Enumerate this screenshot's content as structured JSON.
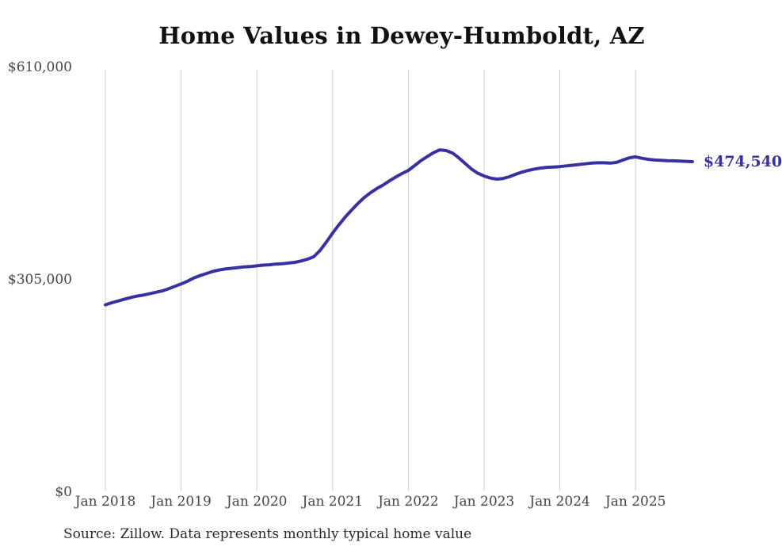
{
  "chart": {
    "source_note": "Source: Zillow. Data represents monthly typical home value"
  },
  "chart_data": {
    "type": "line",
    "title": "Home Values in Dewey-Humboldt, AZ",
    "frequency": "monthly",
    "x_start": "2018-01",
    "x_end": "2025-10",
    "x_tick_labels": [
      "Jan 2018",
      "Jan 2019",
      "Jan 2020",
      "Jan 2021",
      "Jan 2022",
      "Jan 2023",
      "Jan 2024",
      "Jan 2025"
    ],
    "y_ticks": [
      {
        "label": "$610,000",
        "value": 610000
      },
      {
        "label": "$305,000",
        "value": 305000
      },
      {
        "label": "$0",
        "value": 0
      }
    ],
    "ylim": [
      0,
      610000
    ],
    "grid": "vertical-only",
    "legend": "none",
    "end_label": "$474,540",
    "end_value": 474540,
    "series": [
      {
        "name": "Typical home value",
        "values": [
          269000,
          272000,
          274500,
          277000,
          279500,
          281500,
          283000,
          285000,
          287000,
          289000,
          292000,
          295500,
          299000,
          303000,
          307500,
          311000,
          314000,
          317000,
          319000,
          320500,
          321500,
          322500,
          323500,
          324000,
          325000,
          326000,
          326500,
          327500,
          328000,
          329000,
          330000,
          332000,
          334500,
          338000,
          347000,
          359000,
          372000,
          384000,
          395000,
          405000,
          414500,
          423000,
          430000,
          436000,
          441000,
          447000,
          452500,
          457500,
          462000,
          469000,
          476000,
          482000,
          487500,
          491500,
          490500,
          487000,
          480000,
          472000,
          464000,
          458000,
          454000,
          451000,
          449500,
          450500,
          453000,
          456500,
          459500,
          462000,
          464000,
          465500,
          466500,
          467000,
          467500,
          468500,
          469500,
          470500,
          471500,
          472500,
          473000,
          473000,
          472500,
          473500,
          477000,
          480000,
          481500,
          479500,
          478000,
          477000,
          476500,
          476000,
          475800,
          475500,
          475000,
          474540
        ]
      }
    ],
    "colors": {
      "line": "#3731a4",
      "grid": "#cccccc",
      "title": "#111111",
      "axis_labels": "#454545",
      "end_label": "#3731a4",
      "source": "#2a2a2a",
      "background": "#ffffff"
    }
  }
}
